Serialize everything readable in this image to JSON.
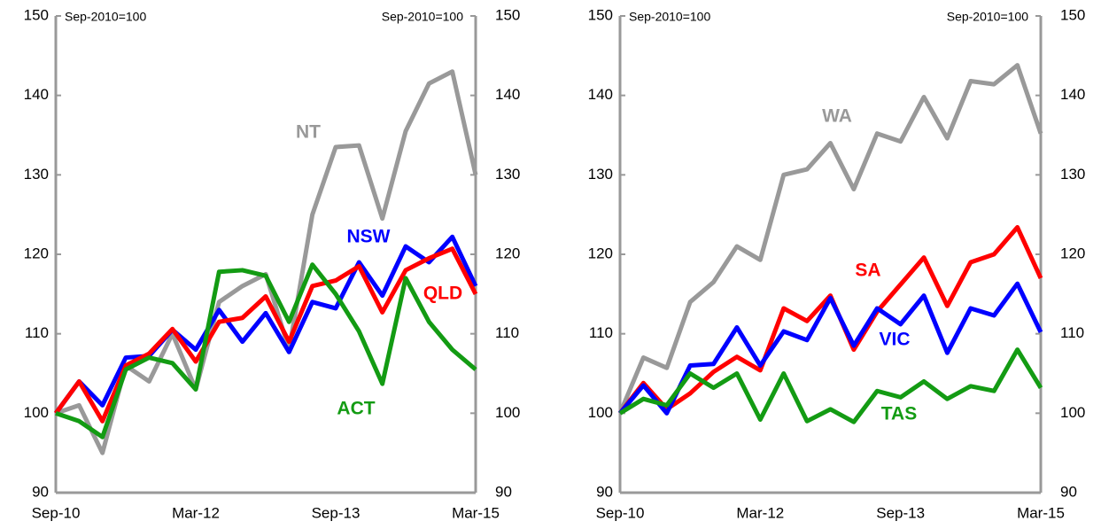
{
  "chart_data": [
    {
      "type": "line",
      "ylabel": "Sep-2010=100",
      "y2label": "Sep-2010=100",
      "categories": [
        "Sep-10",
        null,
        null,
        null,
        null,
        null,
        "Mar-12",
        null,
        null,
        null,
        null,
        null,
        "Sep-13",
        null,
        null,
        null,
        null,
        null,
        "Mar-15"
      ],
      "ylim": [
        90,
        150
      ],
      "yticks": [
        90,
        100,
        110,
        120,
        130,
        140,
        150
      ],
      "y2lim": [
        90,
        150
      ],
      "y2ticks": [
        90,
        100,
        110,
        120,
        130,
        140,
        150
      ],
      "series": [
        {
          "name": "NT",
          "color": "#999999",
          "values": [
            100,
            101,
            95,
            106,
            104,
            110,
            103,
            114,
            116,
            117.5,
            108,
            125,
            133.5,
            133.7,
            124.5,
            135.5,
            141.5,
            143,
            130
          ]
        },
        {
          "name": "NSW",
          "color": "#0000ff",
          "values": [
            100,
            104,
            101,
            107,
            107.2,
            110.5,
            108,
            113,
            109,
            112.6,
            107.7,
            114,
            113.2,
            119,
            114.8,
            121,
            119,
            122.2,
            116
          ]
        },
        {
          "name": "QLD",
          "color": "#ff0000",
          "values": [
            100,
            104,
            99,
            106,
            107.5,
            110.6,
            106.5,
            111.5,
            112,
            114.7,
            109,
            116,
            116.7,
            118.5,
            112.7,
            118,
            119.5,
            120.7,
            115
          ]
        },
        {
          "name": "ACT",
          "color": "#139b13",
          "values": [
            100,
            99,
            97,
            105.5,
            107,
            106.3,
            103,
            117.8,
            118,
            117.3,
            111.5,
            118.7,
            115,
            110.3,
            103.7,
            117,
            111.5,
            108,
            105.5
          ]
        }
      ]
    },
    {
      "type": "line",
      "ylabel": "Sep-2010=100",
      "y2label": "Sep-2010=100",
      "categories": [
        "Sep-10",
        null,
        null,
        null,
        null,
        null,
        "Mar-12",
        null,
        null,
        null,
        null,
        null,
        "Sep-13",
        null,
        null,
        null,
        null,
        null,
        "Mar-15"
      ],
      "ylim": [
        90,
        150
      ],
      "yticks": [
        90,
        100,
        110,
        120,
        130,
        140,
        150
      ],
      "y2lim": [
        90,
        150
      ],
      "y2ticks": [
        90,
        100,
        110,
        120,
        130,
        140,
        150
      ],
      "series": [
        {
          "name": "WA",
          "color": "#999999",
          "values": [
            100,
            107,
            105.7,
            114,
            116.5,
            121,
            119.3,
            130,
            130.7,
            134,
            128.2,
            135.2,
            134.2,
            139.8,
            134.6,
            141.8,
            141.4,
            143.8,
            135.2
          ]
        },
        {
          "name": "SA",
          "color": "#ff0000",
          "values": [
            100,
            103.8,
            100.5,
            102.5,
            105.2,
            107.1,
            105.4,
            113.2,
            111.6,
            114.8,
            108,
            112.8,
            116.2,
            119.6,
            113.5,
            119,
            120,
            123.4,
            117
          ]
        },
        {
          "name": "VIC",
          "color": "#0000ff",
          "values": [
            100,
            103.5,
            100,
            106,
            106.2,
            110.8,
            106,
            110.3,
            109.2,
            114.5,
            108.5,
            113.2,
            111.2,
            114.8,
            107.6,
            113.2,
            112.3,
            116.3,
            110.2
          ]
        },
        {
          "name": "TAS",
          "color": "#139b13",
          "values": [
            100,
            101.8,
            101,
            105,
            103.2,
            105,
            99.2,
            105,
            99,
            100.5,
            98.9,
            102.8,
            102,
            104,
            101.8,
            103.4,
            102.8,
            108,
            103.2
          ]
        }
      ]
    }
  ]
}
